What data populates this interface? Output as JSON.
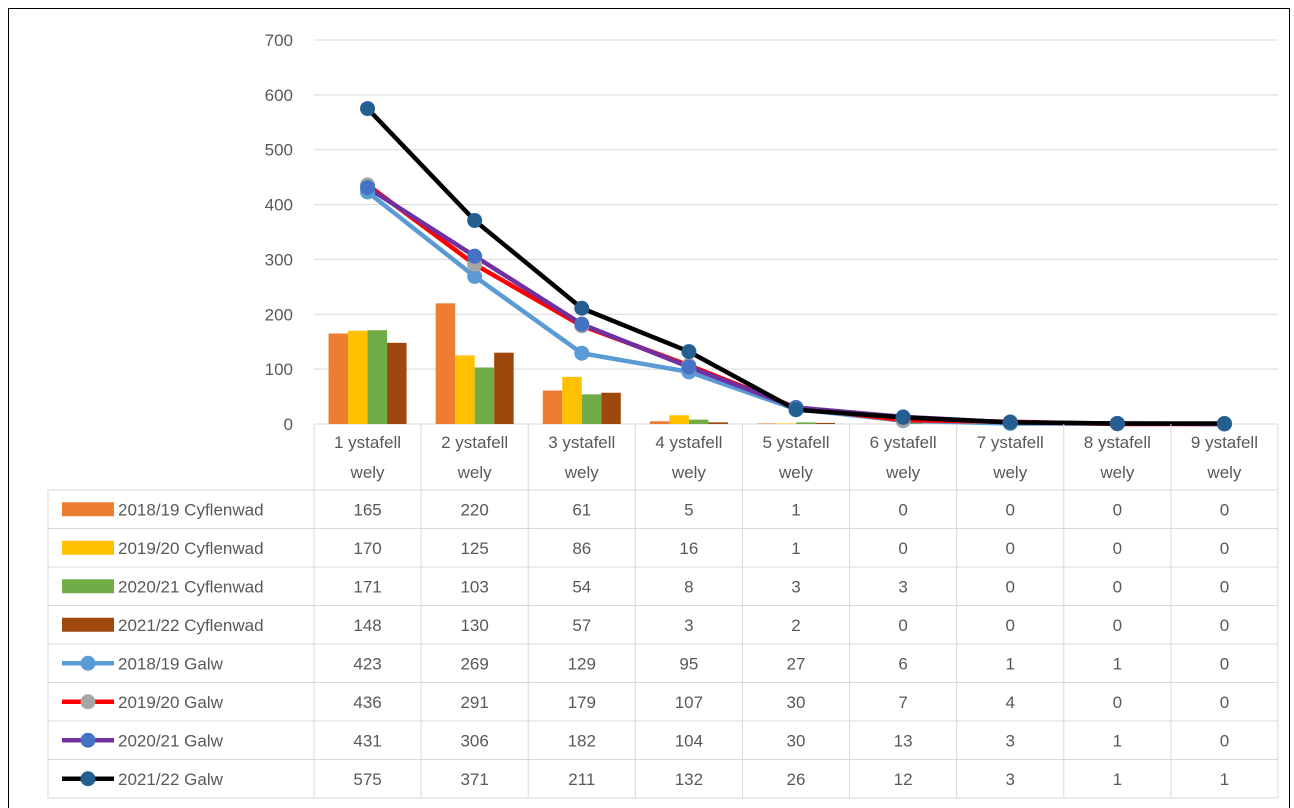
{
  "chart_data": {
    "type": "bar",
    "title": "",
    "xlabel": "",
    "ylabel": "",
    "ylim": [
      0,
      700
    ],
    "yticks": [
      0,
      100,
      200,
      300,
      400,
      500,
      600,
      700
    ],
    "grid": true,
    "legend": "data-table",
    "categories": [
      [
        "1 ystafell",
        "wely"
      ],
      [
        "2 ystafell",
        "wely"
      ],
      [
        "3 ystafell",
        "wely"
      ],
      [
        "4 ystafell",
        "wely"
      ],
      [
        "5 ystafell",
        "wely"
      ],
      [
        "6 ystafell",
        "wely"
      ],
      [
        "7 ystafell",
        "wely"
      ],
      [
        "8 ystafell",
        "wely"
      ],
      [
        "9 ystafell",
        "wely"
      ]
    ],
    "series": [
      {
        "name": "2018/19 Cyflenwad",
        "kind": "bar",
        "color": "#ED7D31",
        "values": [
          165,
          220,
          61,
          5,
          1,
          0,
          0,
          0,
          0
        ]
      },
      {
        "name": "2019/20 Cyflenwad",
        "kind": "bar",
        "color": "#FFC000",
        "values": [
          170,
          125,
          86,
          16,
          1,
          0,
          0,
          0,
          0
        ]
      },
      {
        "name": "2020/21 Cyflenwad",
        "kind": "bar",
        "color": "#70AD47",
        "values": [
          171,
          103,
          54,
          8,
          3,
          3,
          0,
          0,
          0
        ]
      },
      {
        "name": "2021/22 Cyflenwad",
        "kind": "bar",
        "color": "#9E480E",
        "values": [
          148,
          130,
          57,
          3,
          2,
          0,
          0,
          0,
          0
        ]
      },
      {
        "name": "2018/19 Galw",
        "kind": "line",
        "color": "#5B9BD5",
        "marker": "#5B9BD5",
        "values": [
          423,
          269,
          129,
          95,
          27,
          6,
          1,
          1,
          0
        ]
      },
      {
        "name": "2019/20 Galw",
        "kind": "line",
        "color": "#FF0000",
        "marker": "#A5A5A5",
        "values": [
          436,
          291,
          179,
          107,
          30,
          7,
          4,
          0,
          0
        ]
      },
      {
        "name": "2020/21 Galw",
        "kind": "line",
        "color": "#7030A0",
        "marker": "#4472C4",
        "values": [
          431,
          306,
          182,
          104,
          30,
          13,
          3,
          1,
          0
        ]
      },
      {
        "name": "2021/22 Galw",
        "kind": "line",
        "color": "#000000",
        "marker": "#255E91",
        "values": [
          575,
          371,
          211,
          132,
          26,
          12,
          3,
          1,
          1
        ]
      }
    ]
  }
}
